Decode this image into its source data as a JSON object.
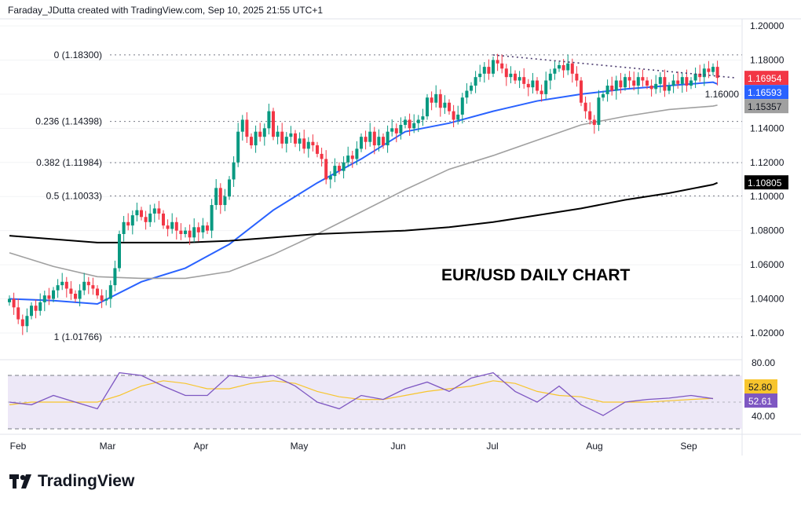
{
  "header": {
    "text": "Faraday_JDutta created with TradingView.com, Sep 10, 2025 21:55 UTC+1"
  },
  "logo": {
    "text": "TradingView"
  },
  "annotation": "EUR/USD DAILY CHART",
  "colors": {
    "up": "#089981",
    "down": "#f23645",
    "ma50": "#2962ff",
    "ma100": "#a0a0a0",
    "ma200": "#000000",
    "rsi": "#7e57c2",
    "rsi_ma": "#f7c52d",
    "fib": "#787b86",
    "trendline": "#4a3a6e"
  },
  "chart_data": [
    {
      "type": "candlestick",
      "title": "EUR/USD DAILY CHART",
      "ylim": [
        1.0,
        1.2
      ],
      "y_ticks": [
        "1.20000",
        "1.18000",
        "1.16000",
        "1.14000",
        "1.12000",
        "1.10000",
        "1.08000",
        "1.06000",
        "1.04000",
        "1.02000"
      ],
      "x_ticks": [
        "Feb",
        "Mar",
        "Apr",
        "May",
        "Jun",
        "Jul",
        "Aug",
        "Sep"
      ],
      "closes": [
        1.04,
        1.035,
        1.028,
        1.024,
        1.03,
        1.036,
        1.033,
        1.038,
        1.042,
        1.04,
        1.045,
        1.048,
        1.05,
        1.046,
        1.043,
        1.04,
        1.045,
        1.05,
        1.048,
        1.046,
        1.042,
        1.039,
        1.04,
        1.048,
        1.058,
        1.078,
        1.085,
        1.083,
        1.089,
        1.092,
        1.088,
        1.085,
        1.09,
        1.093,
        1.09,
        1.083,
        1.081,
        1.085,
        1.08,
        1.078,
        1.08,
        1.076,
        1.082,
        1.079,
        1.083,
        1.08,
        1.095,
        1.105,
        1.095,
        1.1,
        1.11,
        1.12,
        1.138,
        1.145,
        1.135,
        1.13,
        1.138,
        1.135,
        1.14,
        1.15,
        1.135,
        1.138,
        1.131,
        1.135,
        1.137,
        1.131,
        1.134,
        1.128,
        1.132,
        1.13,
        1.125,
        1.122,
        1.11,
        1.112,
        1.118,
        1.115,
        1.12,
        1.124,
        1.122,
        1.128,
        1.135,
        1.132,
        1.138,
        1.13,
        1.135,
        1.13,
        1.138,
        1.14,
        1.137,
        1.142,
        1.145,
        1.14,
        1.143,
        1.145,
        1.147,
        1.158,
        1.155,
        1.16,
        1.152,
        1.155,
        1.15,
        1.145,
        1.148,
        1.158,
        1.162,
        1.165,
        1.17,
        1.172,
        1.176,
        1.172,
        1.18,
        1.178,
        1.175,
        1.17,
        1.172,
        1.168,
        1.17,
        1.166,
        1.164,
        1.168,
        1.162,
        1.16,
        1.168,
        1.172,
        1.175,
        1.177,
        1.174,
        1.178,
        1.172,
        1.168,
        1.155,
        1.15,
        1.145,
        1.142,
        1.158,
        1.16,
        1.165,
        1.162,
        1.168,
        1.164,
        1.17,
        1.168,
        1.165,
        1.17,
        1.168,
        1.165,
        1.163,
        1.166,
        1.17,
        1.162,
        1.165,
        1.168,
        1.166,
        1.17,
        1.165,
        1.168,
        1.172,
        1.17,
        1.175,
        1.173,
        1.176,
        1.16954
      ],
      "moving_averages": [
        {
          "label": "1.16593",
          "color": "#2962ff",
          "values": [
            1.04,
            1.039,
            1.037,
            1.05,
            1.058,
            1.072,
            1.092,
            1.108,
            1.122,
            1.138,
            1.143,
            1.15,
            1.156,
            1.16,
            1.163,
            1.165,
            1.167,
            1.16593
          ]
        },
        {
          "label": "1.15357",
          "color": "#a0a0a0",
          "values": [
            1.067,
            1.059,
            1.053,
            1.052,
            1.052,
            1.056,
            1.066,
            1.078,
            1.091,
            1.104,
            1.116,
            1.124,
            1.133,
            1.142,
            1.147,
            1.151,
            1.153,
            1.15357
          ]
        },
        {
          "label": "1.10805",
          "color": "#000000",
          "values": [
            1.077,
            1.075,
            1.073,
            1.073,
            1.073,
            1.074,
            1.076,
            1.078,
            1.079,
            1.08,
            1.082,
            1.085,
            1.089,
            1.093,
            1.098,
            1.102,
            1.107,
            1.10805
          ]
        }
      ],
      "last_price_label": "1.16954",
      "fib_levels": [
        {
          "label": "0 (1.18300)",
          "value": 1.183
        },
        {
          "label": "0.236 (1.14398)",
          "value": 1.14398
        },
        {
          "label": "0.382 (1.11984)",
          "value": 1.11984
        },
        {
          "label": "0.5 (1.10033)",
          "value": 1.10033
        },
        {
          "label": "1 (1.01766)",
          "value": 1.01766
        }
      ],
      "trendline": {
        "from": {
          "bar": 110,
          "price": 1.183
        },
        "to": {
          "bar": 165,
          "price": 1.1696
        }
      }
    },
    {
      "type": "line",
      "ylim": [
        28,
        82
      ],
      "y_ticks": [
        "80.00",
        "40.00"
      ],
      "bands": [
        70,
        50,
        30
      ],
      "rsi": [
        50,
        48,
        55,
        50,
        45,
        72,
        70,
        62,
        55,
        55,
        70,
        68,
        70,
        62,
        50,
        45,
        55,
        52,
        60,
        65,
        58,
        68,
        72,
        58,
        50,
        62,
        48,
        40,
        50,
        52,
        53,
        55,
        52.61
      ],
      "rsi_ma": [
        48,
        50,
        50,
        50,
        50,
        55,
        62,
        66,
        64,
        60,
        60,
        64,
        66,
        64,
        58,
        54,
        52,
        52,
        55,
        58,
        60,
        62,
        66,
        64,
        58,
        55,
        54,
        50,
        50,
        50,
        51,
        52,
        52.8
      ],
      "rsi_label": "52.61",
      "rsi_ma_label": "52.80"
    }
  ]
}
